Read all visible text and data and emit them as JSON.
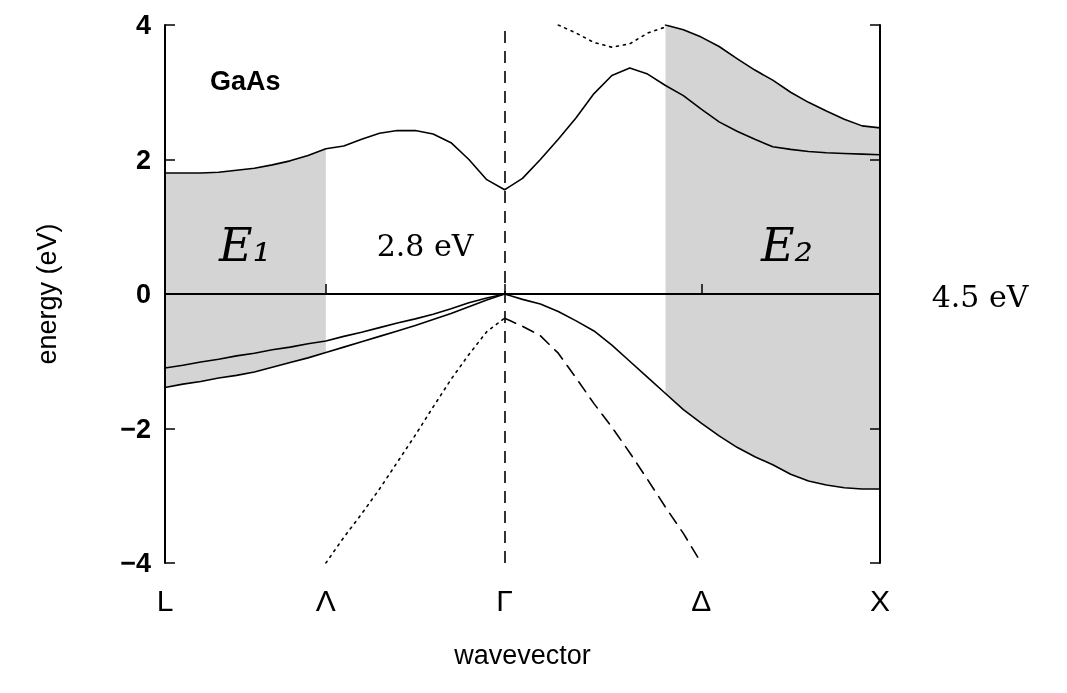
{
  "chart_data": {
    "type": "line",
    "title": "GaAs",
    "xlabel": "wavevector",
    "ylabel": "energy (eV)",
    "categories": [
      "L",
      null,
      null,
      null,
      null,
      null,
      null,
      null,
      null,
      "Λ",
      null,
      null,
      null,
      null,
      null,
      null,
      null,
      null,
      null,
      "Γ",
      null,
      null,
      null,
      null,
      null,
      null,
      null,
      null,
      null,
      null,
      "Δ",
      null,
      null,
      null,
      null,
      null,
      null,
      null,
      null,
      null,
      "X"
    ],
    "ylim": [
      -4,
      4
    ],
    "yticks": [
      -4,
      -2,
      0,
      2,
      4
    ],
    "grid": false,
    "marker": "none",
    "series": [
      {
        "color": "#000000",
        "line_style": "solid",
        "values": [
          1.8,
          1.8,
          1.8,
          1.81,
          1.84,
          1.87,
          1.92,
          1.98,
          2.06,
          2.16,
          2.2,
          2.3,
          2.39,
          2.43,
          2.43,
          2.38,
          2.25,
          2.0,
          1.7,
          1.55,
          1.72,
          2.0,
          2.3,
          2.62,
          2.98,
          3.25,
          3.36,
          3.27,
          3.1,
          2.95,
          2.75,
          2.56,
          2.42,
          2.3,
          2.19,
          2.15,
          2.12,
          2.1,
          2.09,
          2.08,
          2.07
        ],
        "upper": [
          1.8,
          1.8,
          1.8,
          1.81,
          1.84,
          1.87,
          1.92,
          1.98,
          2.06,
          2.16,
          null,
          null,
          null,
          null,
          null,
          null,
          null,
          null,
          null,
          null,
          null,
          null,
          null,
          null,
          null,
          null,
          null,
          null,
          null,
          null,
          null,
          null,
          null,
          null,
          null,
          null,
          null,
          null,
          null,
          null,
          null
        ],
        "lower": [
          -1.39,
          -1.34,
          -1.3,
          -1.25,
          -1.21,
          -1.16,
          -1.09,
          -1.02,
          -0.95,
          -0.87,
          null,
          null,
          null,
          null,
          null,
          null,
          null,
          null,
          null,
          null,
          null,
          null,
          null,
          null,
          null,
          null,
          null,
          null,
          null,
          null,
          null,
          null,
          null,
          null,
          null,
          null,
          null,
          null,
          null,
          null,
          null
        ]
      },
      {
        "color": "#000000",
        "line_style": "solid",
        "values": [
          null,
          null,
          null,
          null,
          null,
          null,
          null,
          null,
          null,
          null,
          null,
          null,
          null,
          null,
          null,
          null,
          null,
          null,
          null,
          null,
          null,
          null,
          null,
          null,
          null,
          null,
          null,
          null,
          4.0,
          3.93,
          3.82,
          3.68,
          3.5,
          3.33,
          3.18,
          3.0,
          2.85,
          2.72,
          2.6,
          2.5,
          2.47
        ],
        "upper": [
          null,
          null,
          null,
          null,
          null,
          null,
          null,
          null,
          null,
          null,
          null,
          null,
          null,
          null,
          null,
          null,
          null,
          null,
          null,
          null,
          null,
          null,
          null,
          null,
          null,
          null,
          null,
          null,
          4.0,
          3.93,
          3.82,
          3.68,
          3.5,
          3.33,
          3.18,
          3.0,
          2.85,
          2.72,
          2.6,
          2.5,
          2.47
        ],
        "lower": [
          null,
          null,
          null,
          null,
          null,
          null,
          null,
          null,
          null,
          null,
          null,
          null,
          null,
          null,
          null,
          null,
          null,
          null,
          null,
          null,
          null,
          null,
          null,
          null,
          null,
          null,
          null,
          null,
          -1.48,
          -1.72,
          -1.92,
          -2.11,
          -2.28,
          -2.42,
          -2.54,
          -2.68,
          -2.78,
          -2.84,
          -2.88,
          -2.9,
          -2.9
        ]
      },
      {
        "color": "#000000",
        "line_style": "dotted",
        "values": [
          null,
          null,
          null,
          null,
          null,
          null,
          null,
          null,
          null,
          null,
          null,
          null,
          null,
          null,
          null,
          null,
          null,
          null,
          null,
          null,
          null,
          null,
          4.0,
          3.88,
          3.74,
          3.67,
          3.72,
          3.88,
          3.97,
          null,
          null,
          null,
          null,
          null,
          null,
          null,
          null,
          null,
          null,
          null,
          null
        ]
      },
      {
        "color": "#000000",
        "line_style": "solid",
        "values": [
          -1.1,
          -1.06,
          -1.01,
          -0.97,
          -0.92,
          -0.88,
          -0.83,
          -0.79,
          -0.74,
          -0.7,
          -0.63,
          -0.57,
          -0.5,
          -0.43,
          -0.37,
          -0.3,
          -0.22,
          -0.13,
          -0.06,
          0,
          null,
          null,
          null,
          null,
          null,
          null,
          null,
          null,
          null,
          null,
          null,
          null,
          null,
          null,
          null,
          null,
          null,
          null,
          null,
          null,
          null
        ]
      },
      {
        "color": "#000000",
        "line_style": "solid",
        "values": [
          -1.39,
          -1.34,
          -1.3,
          -1.25,
          -1.21,
          -1.16,
          -1.09,
          -1.02,
          -0.95,
          -0.87,
          -0.79,
          -0.71,
          -0.63,
          -0.55,
          -0.47,
          -0.38,
          -0.29,
          -0.19,
          -0.09,
          0,
          null,
          null,
          null,
          null,
          null,
          null,
          null,
          null,
          null,
          null,
          null,
          null,
          null,
          null,
          null,
          null,
          null,
          null,
          null,
          null,
          null
        ]
      },
      {
        "color": "#000000",
        "line_style": "solid",
        "values": [
          null,
          null,
          null,
          null,
          null,
          null,
          null,
          null,
          null,
          null,
          null,
          null,
          null,
          null,
          null,
          null,
          null,
          null,
          null,
          0,
          -0.08,
          -0.15,
          -0.26,
          -0.4,
          -0.55,
          -0.76,
          -1.0,
          -1.24,
          -1.48,
          -1.72,
          -1.92,
          -2.11,
          -2.28,
          -2.42,
          -2.54,
          -2.68,
          -2.78,
          -2.84,
          -2.88,
          -2.9,
          -2.9
        ]
      },
      {
        "color": "#000000",
        "line_style": "dotted",
        "values": [
          null,
          null,
          null,
          null,
          null,
          null,
          null,
          null,
          null,
          -4,
          -3.62,
          -3.27,
          -2.9,
          -2.5,
          -2.1,
          -1.68,
          -1.27,
          -0.9,
          -0.56,
          -0.36,
          null,
          null,
          null,
          null,
          null,
          null,
          null,
          null,
          null,
          null,
          null,
          null,
          null,
          null,
          null,
          null,
          null,
          null,
          null,
          null,
          null
        ]
      },
      {
        "color": "#000000",
        "line_style": "dashed",
        "values": [
          null,
          null,
          null,
          null,
          null,
          null,
          null,
          null,
          null,
          null,
          null,
          null,
          null,
          null,
          null,
          null,
          null,
          null,
          null,
          -0.36,
          -0.48,
          -0.62,
          -0.88,
          -1.25,
          -1.63,
          -1.98,
          -2.36,
          -2.76,
          -3.17,
          -3.56,
          -4,
          null,
          null,
          null,
          null,
          null,
          null,
          null,
          null,
          null,
          null
        ]
      }
    ],
    "ref_lines": [
      {
        "axis": "y",
        "value": 0,
        "color": "#000000",
        "line_style": "solid"
      },
      {
        "axis": "x",
        "value": "Γ",
        "color": "#000000",
        "line_style": "dashed"
      }
    ],
    "annotations": [
      "E₁",
      "2.8 eV",
      "E₂",
      "4.5 eV"
    ]
  }
}
